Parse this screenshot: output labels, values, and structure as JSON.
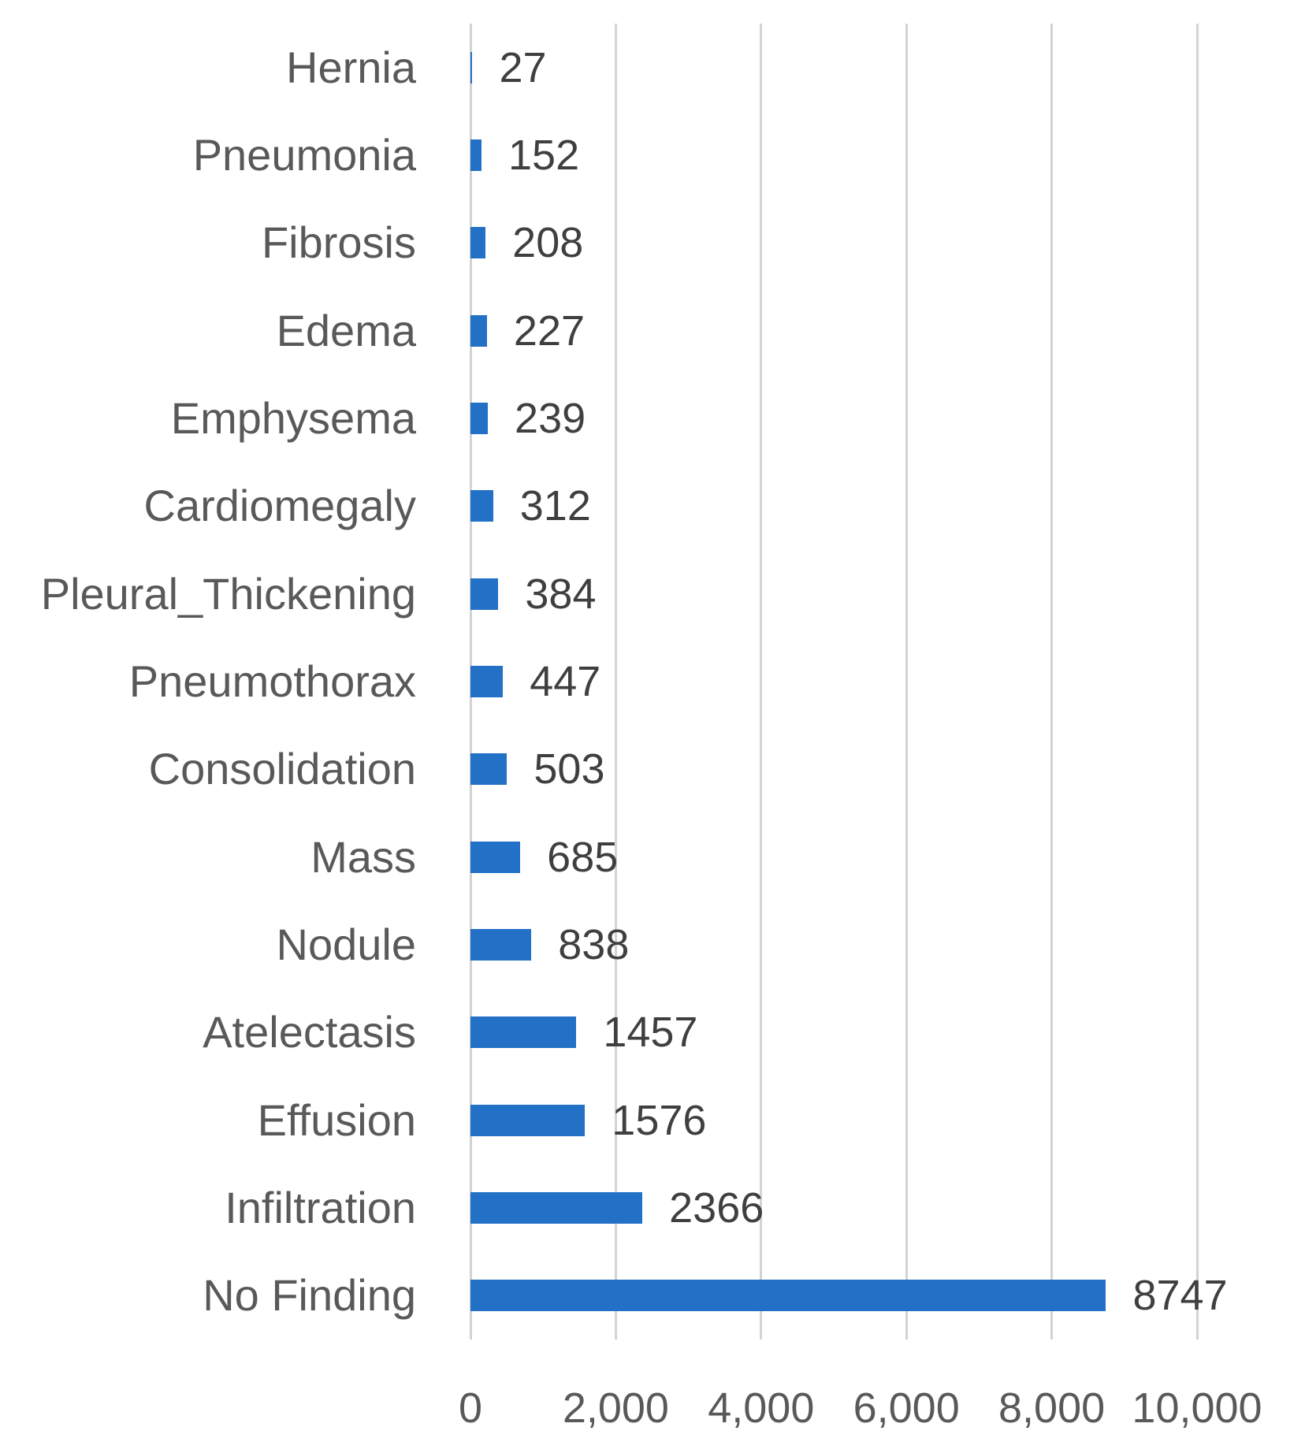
{
  "chart_data": {
    "type": "bar",
    "orientation": "horizontal",
    "title": "",
    "xlabel": "",
    "ylabel": "",
    "legend": "none",
    "grid": "vertical",
    "xlim": [
      0,
      10000
    ],
    "categories": [
      "Hernia",
      "Pneumonia",
      "Fibrosis",
      "Edema",
      "Emphysema",
      "Cardiomegaly",
      "Pleural_Thickening",
      "Pneumothorax",
      "Consolidation",
      "Mass",
      "Nodule",
      "Atelectasis",
      "Effusion",
      "Infiltration",
      "No Finding"
    ],
    "values": [
      27,
      152,
      208,
      227,
      239,
      312,
      384,
      447,
      503,
      685,
      838,
      1457,
      1576,
      2366,
      8747
    ],
    "value_labels": [
      "27",
      "152",
      "208",
      "227",
      "239",
      "312",
      "384",
      "447",
      "503",
      "685",
      "838",
      "1457",
      "1576",
      "2366",
      "8747"
    ],
    "x_ticks": [
      0,
      2000,
      4000,
      6000,
      8000,
      10000
    ],
    "x_tick_labels": [
      "0",
      "2,000",
      "4,000",
      "6,000",
      "8,000",
      "10,000"
    ],
    "colors": {
      "bar": "#2271c6",
      "gridline": "#d3d3d3",
      "category_text": "#595959",
      "value_text": "#3f3f3f",
      "tick_text": "#595959",
      "background": "#ffffff"
    }
  }
}
